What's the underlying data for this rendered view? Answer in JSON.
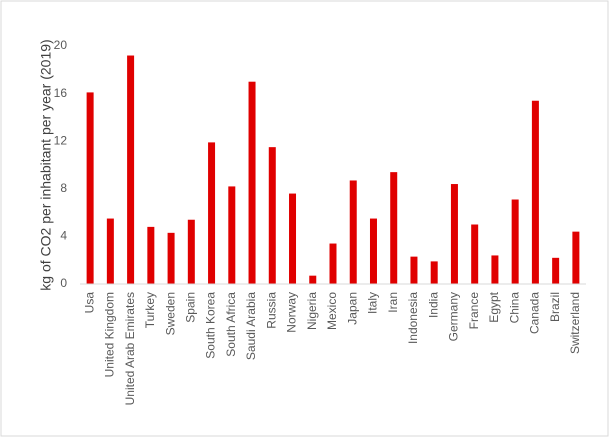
{
  "chart_data": {
    "type": "bar",
    "y_label": "kg of CO2 per inhabitant per year (2019)",
    "categories": [
      "Usa",
      "United Kingdom",
      "United Arab Emirates",
      "Turkey",
      "Sweden",
      "Spain",
      "South Korea",
      "South Africa",
      "Saudi Arabia",
      "Russia",
      "Norway",
      "Nigeria",
      "Mexico",
      "Japan",
      "Italy",
      "Iran",
      "Indonesia",
      "India",
      "Germany",
      "France",
      "Egypt",
      "China",
      "Canada",
      "Brazil",
      "Switzerland"
    ],
    "values": [
      16.1,
      5.5,
      19.2,
      4.8,
      4.3,
      5.4,
      11.9,
      8.2,
      17.0,
      11.5,
      7.6,
      0.7,
      3.4,
      8.7,
      5.5,
      9.4,
      2.3,
      1.9,
      8.4,
      5.0,
      2.4,
      7.1,
      15.4,
      2.2,
      4.4
    ],
    "color": "#e00000",
    "ylim": [
      0,
      20
    ],
    "yticks": [
      0,
      4,
      8,
      12,
      16,
      20
    ],
    "grid": false
  }
}
